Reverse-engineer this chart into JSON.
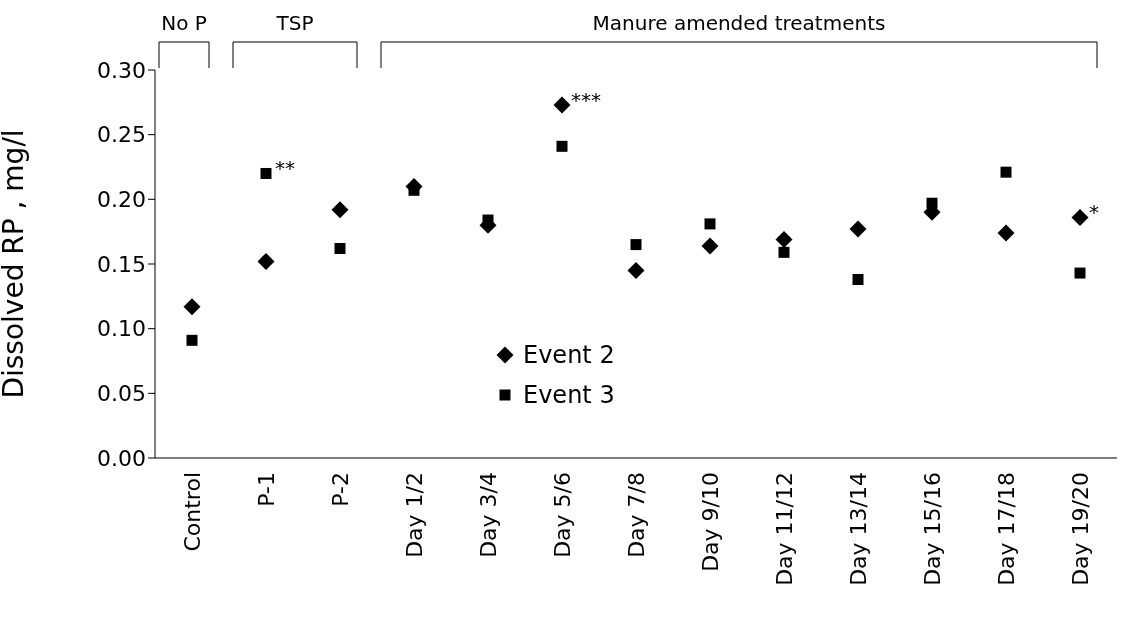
{
  "chart_data": {
    "type": "scatter",
    "ylabel": "Dissolved RP , mg/l",
    "categories": [
      "Control",
      "P-1",
      "P-2",
      "Day 1/2",
      "Day 3/4",
      "Day 5/6",
      "Day 7/8",
      "Day 9/10",
      "Day 11/12",
      "Day 13/14",
      "Day 15/16",
      "Day 17/18",
      "Day 19/20"
    ],
    "series": [
      {
        "name": "Event 2",
        "color": "#000000",
        "marker": "diamond",
        "values": [
          0.117,
          0.152,
          0.192,
          0.21,
          0.18,
          0.273,
          0.145,
          0.164,
          0.169,
          0.177,
          0.19,
          0.174,
          0.186
        ]
      },
      {
        "name": "Event 3",
        "color": "#000000",
        "marker": "square",
        "values": [
          0.091,
          0.22,
          0.162,
          0.207,
          0.184,
          0.241,
          0.165,
          0.181,
          0.159,
          0.138,
          0.197,
          0.221,
          0.143
        ]
      }
    ],
    "ylim": [
      0,
      0.3
    ],
    "yticks": [
      {
        "value": 0,
        "label": "0.00"
      },
      {
        "value": 0.05,
        "label": "0.05"
      },
      {
        "value": 0.1,
        "label": "0.10"
      },
      {
        "value": 0.15,
        "label": "0.15"
      },
      {
        "value": 0.2,
        "label": "0.20"
      },
      {
        "value": 0.25,
        "label": "0.25"
      },
      {
        "value": 0.3,
        "label": "0.30"
      }
    ],
    "grid": false,
    "legend": "bottom",
    "annotations": [
      "No P",
      "TSP",
      "Manure amended treatments",
      {
        "text": "**",
        "x": "P-1",
        "y": 0.22
      },
      {
        "text": "***",
        "x": "Day 5/6",
        "y": 0.273
      },
      {
        "text": "*",
        "x": "Day 19/20",
        "y": 0.186
      }
    ]
  }
}
